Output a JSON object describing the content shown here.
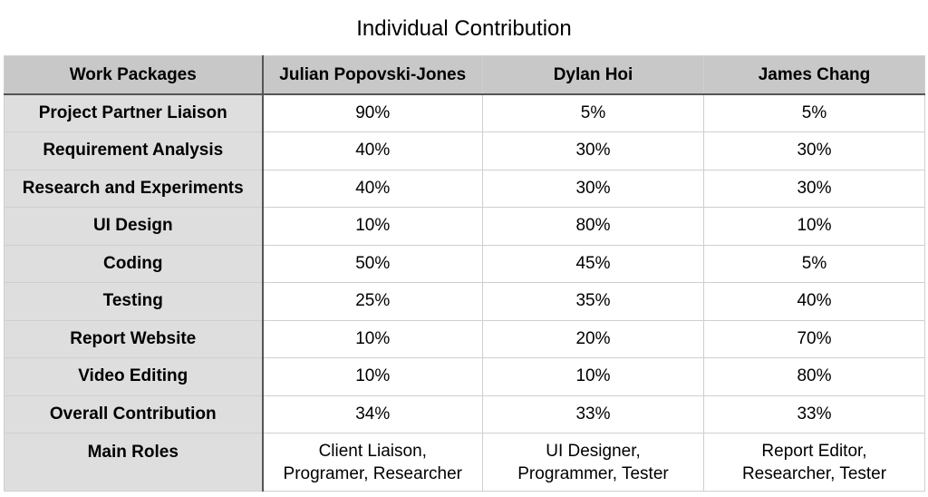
{
  "title": "Individual Contribution",
  "table": {
    "headers": [
      "Work Packages",
      "Julian Popovski-Jones",
      "Dylan Hoi",
      "James Chang"
    ],
    "rows": [
      {
        "label": "Project Partner Liaison",
        "values": [
          "90%",
          "5%",
          "5%"
        ]
      },
      {
        "label": "Requirement Analysis",
        "values": [
          "40%",
          "30%",
          "30%"
        ]
      },
      {
        "label": "Research and Experiments",
        "values": [
          "40%",
          "30%",
          "30%"
        ]
      },
      {
        "label": "UI Design",
        "values": [
          "10%",
          "80%",
          "10%"
        ]
      },
      {
        "label": "Coding",
        "values": [
          "50%",
          "45%",
          "5%"
        ]
      },
      {
        "label": "Testing",
        "values": [
          "25%",
          "35%",
          "40%"
        ]
      },
      {
        "label": "Report Website",
        "values": [
          "10%",
          "20%",
          "70%"
        ]
      },
      {
        "label": "Video Editing",
        "values": [
          "10%",
          "10%",
          "80%"
        ]
      },
      {
        "label": "Overall Contribution",
        "values": [
          "34%",
          "33%",
          "33%"
        ]
      }
    ],
    "roles": {
      "label": "Main Roles",
      "values": [
        [
          "Client Liaison,",
          "Programer, Researcher"
        ],
        [
          "UI Designer,",
          "Programmer, Tester"
        ],
        [
          "Report Editor,",
          "Researcher, Tester"
        ]
      ]
    }
  },
  "colors": {
    "header_bg": "#c8c8c8",
    "label_bg": "#dedede",
    "grid": "#cfcfcf",
    "divider": "#555555"
  }
}
